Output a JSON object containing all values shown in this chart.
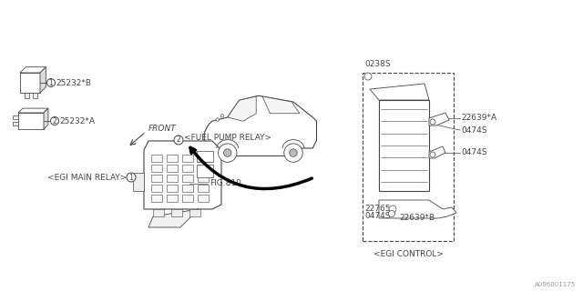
{
  "bg_color": "#ffffff",
  "lc": "#444444",
  "fig_id": "A096001175",
  "fs": 6.5,
  "fs_tiny": 5.5,
  "relay1_label": "25232*B",
  "relay2_label": "25232*A",
  "part_0238s": "0238S",
  "part_22639a": "22639*A",
  "part_0474s1": "0474S",
  "part_0474s2": "0474S",
  "part_22765": "22765",
  "part_0474s3": "0474S",
  "part_22639b": "22639*B",
  "egi_control": "<EGI CONTROL>",
  "egi_main_relay": "<EGI MAIN RELAY>",
  "fuel_pump_relay": "<FUEL PUMP RELAY>",
  "fig_ref": "FIG.810",
  "front_label": "FRONT"
}
